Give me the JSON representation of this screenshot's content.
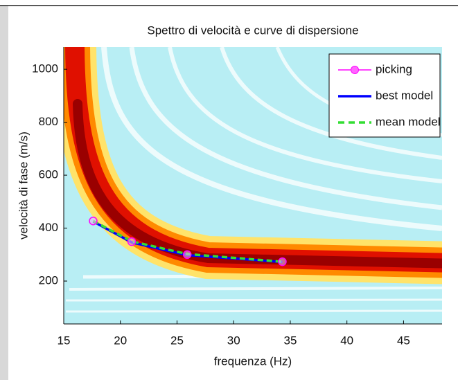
{
  "chart_data": {
    "type": "line",
    "title": "Spettro di velocità e curve di dispersione",
    "xlabel": "frequenza (Hz)",
    "ylabel": "velocità di fase (m/s)",
    "x": [
      17.6,
      21.0,
      25.9,
      34.3
    ],
    "series": [
      {
        "name": "picking",
        "color": "#ff00ff",
        "marker": "circle",
        "linestyle": "solid",
        "values": [
          427,
          349,
          300,
          273
        ]
      },
      {
        "name": "best model",
        "color": "#0000ff",
        "linestyle": "solid",
        "values": [
          425,
          346,
          298,
          272
        ]
      },
      {
        "name": "mean model",
        "color": "#33dd33",
        "linestyle": "dashed",
        "values": [
          427,
          350,
          302,
          273
        ]
      }
    ],
    "xlim": [
      15,
      48.4
    ],
    "xticks": [
      15,
      20,
      25,
      30,
      35,
      40,
      45
    ],
    "ylim": [
      38,
      1084
    ],
    "yticks": [
      200,
      400,
      600,
      800,
      1000
    ],
    "legend": "upper right"
  }
}
